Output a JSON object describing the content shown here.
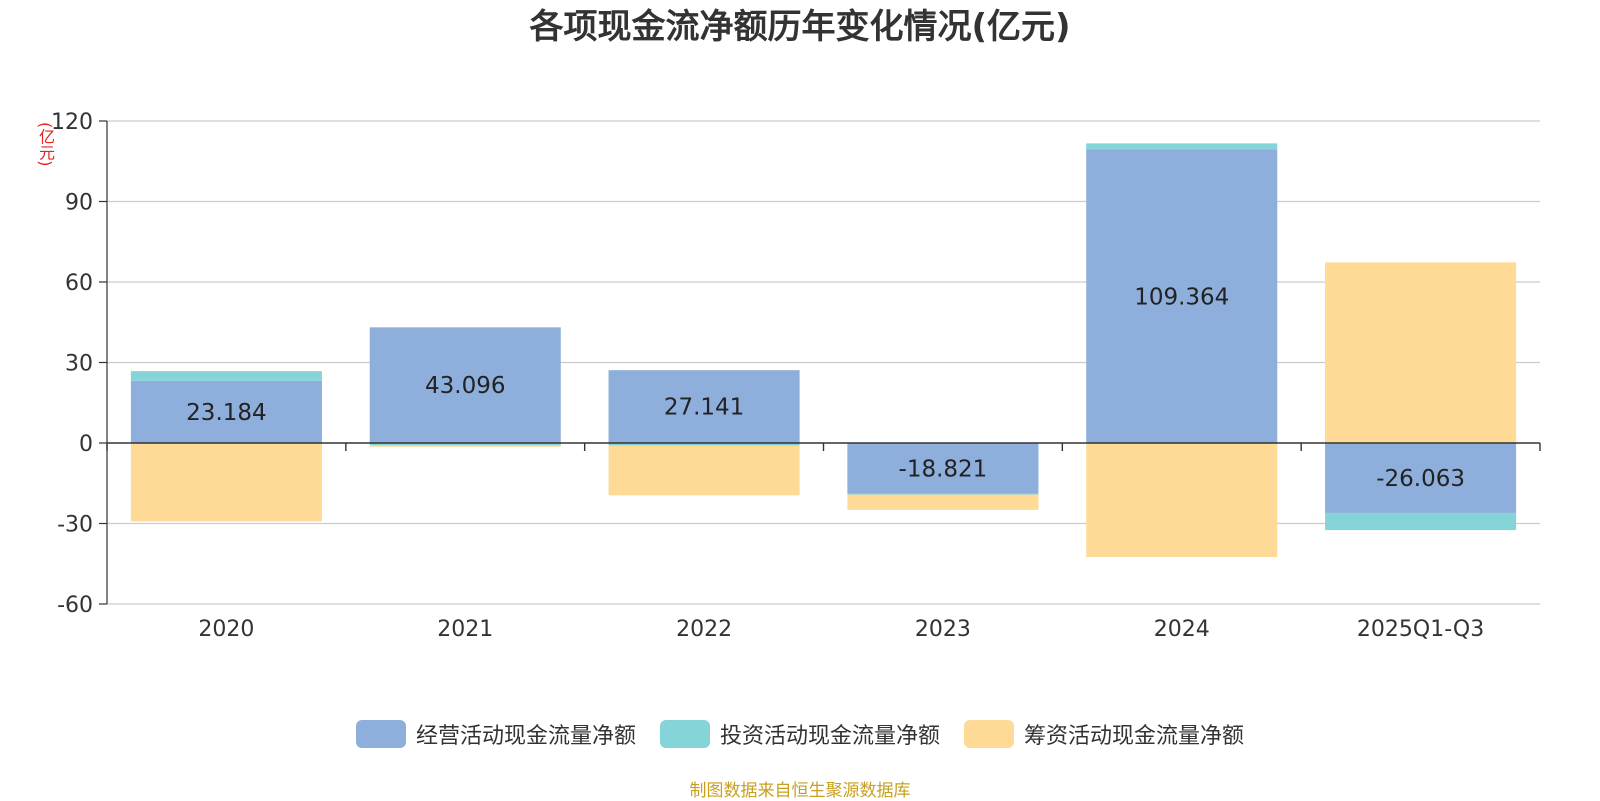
{
  "title": "各项现金流净额历年变化情况(亿元)",
  "unit_label": "(亿元)",
  "source": "制图数据来自恒生聚源数据库",
  "colors": {
    "operating": "#8eaedb",
    "investing": "#85d5d8",
    "financing": "#ffd996",
    "grid": "#cccccc",
    "axis": "#333333",
    "text": "#333333"
  },
  "chart_data": {
    "type": "bar",
    "stacked": true,
    "title": "各项现金流净额历年变化情况(亿元)",
    "ylabel": "(亿元)",
    "ylim": [
      -60,
      120
    ],
    "yticks": [
      -60,
      -30,
      0,
      30,
      60,
      90,
      120
    ],
    "grid": true,
    "legend": "bottom-center",
    "categories": [
      "2020",
      "2021",
      "2022",
      "2023",
      "2024",
      "2025Q1-Q3"
    ],
    "series": [
      {
        "name": "经营活动现金流量净额",
        "color": "#8eaedb",
        "values": [
          23.184,
          43.096,
          27.141,
          -18.821,
          109.364,
          -26.063
        ],
        "labels": [
          "23.184",
          "43.096",
          "27.141",
          "-18.821",
          "109.364",
          "-26.063"
        ]
      },
      {
        "name": "投资活动现金流量净额",
        "color": "#85d5d8",
        "values": [
          3.6,
          -0.9,
          -1.0,
          -0.4,
          2.3,
          -6.4
        ]
      },
      {
        "name": "筹资活动现金流量净额",
        "color": "#ffd996",
        "values": [
          -29.2,
          -0.5,
          -18.5,
          -5.7,
          -42.5,
          67.3
        ]
      }
    ]
  }
}
